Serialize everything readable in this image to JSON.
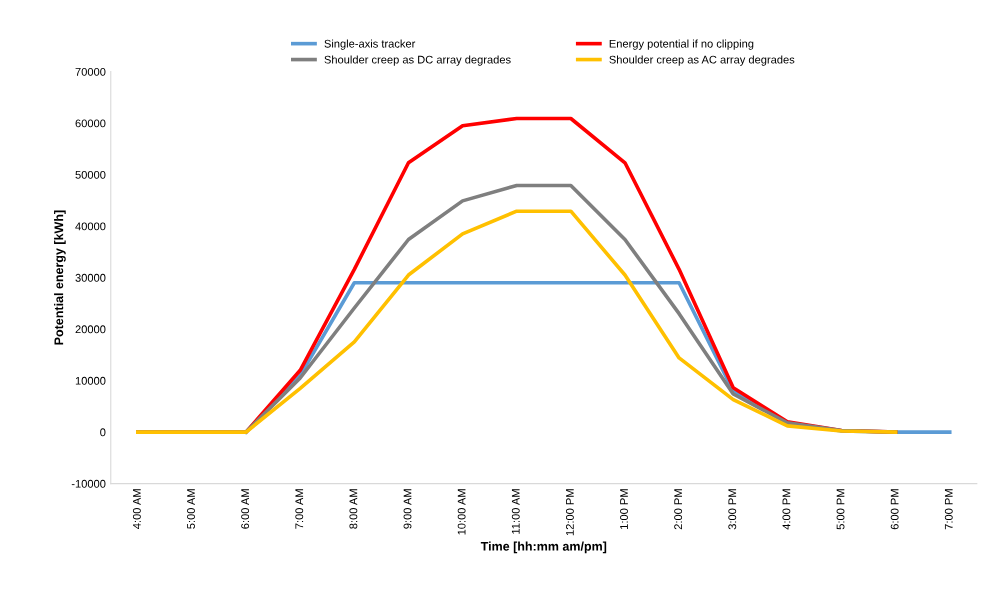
{
  "chart_data": {
    "type": "line",
    "xlabel": "Time [hh:mm am/pm]",
    "ylabel": "Potential energy [kWh]",
    "categories": [
      "4:00 AM",
      "5:00 AM",
      "6:00 AM",
      "7:00 AM",
      "8:00 AM",
      "9:00 AM",
      "10:00 AM",
      "11:00 AM",
      "12:00 PM",
      "1:00 PM",
      "2:00 PM",
      "3:00 PM",
      "4:00 PM",
      "5:00 PM",
      "6:00 PM",
      "7:00 PM"
    ],
    "series": [
      {
        "name": "Single-axis tracker",
        "color": "#5b9bd5",
        "values": [
          null,
          null,
          0,
          11000,
          29000,
          29000,
          29000,
          29000,
          29000,
          29000,
          29000,
          8000,
          1800,
          200,
          0,
          0
        ]
      },
      {
        "name": "Energy potential if no clipping",
        "color": "#ff0000",
        "values": [
          0,
          0,
          0,
          12000,
          31600,
          52300,
          59500,
          60900,
          60900,
          52300,
          31600,
          8600,
          2000,
          300,
          0,
          null
        ]
      },
      {
        "name": "Shoulder creep as DC array degrades",
        "color": "#7f7f7f",
        "values": [
          0,
          0,
          0,
          10500,
          24100,
          37400,
          44900,
          47900,
          47900,
          37400,
          23000,
          7400,
          1800,
          300,
          0,
          null
        ]
      },
      {
        "name": "Shoulder creep as AC array degrades",
        "color": "#ffc000",
        "values": [
          0,
          0,
          0,
          8500,
          17500,
          30500,
          38500,
          42900,
          42900,
          30500,
          14400,
          6300,
          1200,
          200,
          0,
          null
        ]
      }
    ],
    "ylim": [
      -10000,
      70000
    ],
    "yticks": [
      -10000,
      0,
      10000,
      20000,
      30000,
      40000,
      50000,
      60000,
      70000
    ],
    "grid": false,
    "legend": "top",
    "marker": "none",
    "line_style": "solid"
  }
}
